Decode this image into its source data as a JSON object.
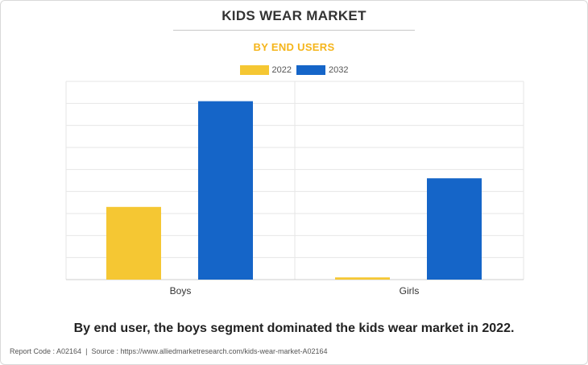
{
  "chart_data": {
    "type": "bar",
    "title": "KIDS WEAR MARKET",
    "subtitle": "BY END USERS",
    "categories": [
      "Boys",
      "Girls"
    ],
    "series": [
      {
        "name": "2022",
        "color": "#f5c733",
        "values": [
          33,
          1
        ]
      },
      {
        "name": "2032",
        "color": "#1565c8",
        "values": [
          81,
          46
        ]
      }
    ],
    "ylim": [
      0,
      90
    ],
    "y_tick_step": 10,
    "y_tick_labels_visible": false,
    "grid": true,
    "legend": "top-center"
  },
  "caption": "By end user, the boys segment dominated the kids wear market in 2022.",
  "footer": {
    "report_code": "Report Code : A02164",
    "separator": "|",
    "source": "Source : https://www.alliedmarketresearch.com/kids-wear-market-A02164"
  }
}
